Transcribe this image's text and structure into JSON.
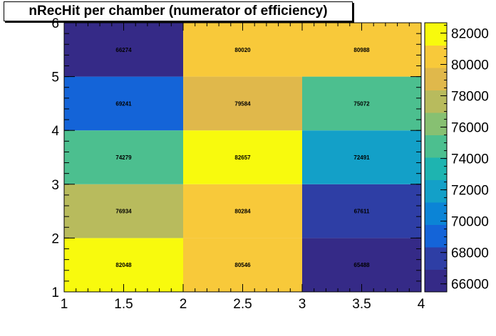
{
  "chart_data": {
    "type": "heatmap",
    "title": "nRecHit per chamber (numerator of efficiency)",
    "xlabel": "",
    "ylabel": "",
    "x_edges": [
      1,
      2,
      3,
      4
    ],
    "y_edges": [
      1,
      2,
      3,
      4,
      5,
      6
    ],
    "x_ticks": [
      "1",
      "1.5",
      "2",
      "2.5",
      "3",
      "3.5",
      "4"
    ],
    "y_ticks": [
      "1",
      "2",
      "3",
      "4",
      "5",
      "6"
    ],
    "xlim": [
      1,
      4
    ],
    "ylim": [
      1,
      6
    ],
    "x_centers": [
      1.5,
      2.5,
      3.5
    ],
    "y_centers": [
      1.5,
      2.5,
      3.5,
      4.5,
      5.5
    ],
    "values": [
      [
        82048,
        80546,
        65488
      ],
      [
        76934,
        80284,
        67611
      ],
      [
        74279,
        82657,
        72491
      ],
      [
        69241,
        79584,
        75072
      ],
      [
        66274,
        80020,
        80988
      ]
    ],
    "colorbar": {
      "min": 65488,
      "max": 82657,
      "ticks": [
        "66000",
        "68000",
        "70000",
        "72000",
        "74000",
        "76000",
        "78000",
        "80000",
        "82000"
      ]
    },
    "colormap": [
      "#352a87",
      "#2e3ea5",
      "#1464d8",
      "#0b84d6",
      "#13a0c8",
      "#1eb4b0",
      "#4cbf8f",
      "#87c072",
      "#b8bb5d",
      "#e0b84b",
      "#f8c93a",
      "#f8fa0d"
    ],
    "grid": false,
    "legend": "colorbar-right"
  }
}
